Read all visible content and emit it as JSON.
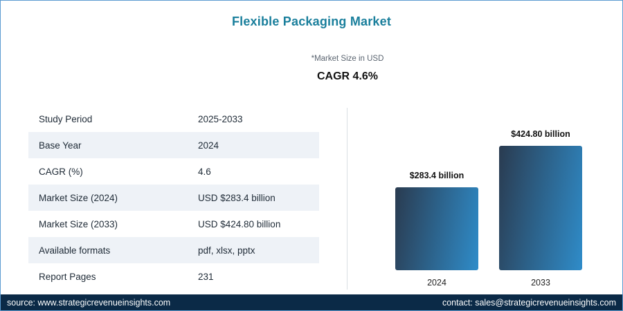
{
  "title": "Flexible Packaging Market",
  "subtitle_note": "*Market Size in USD",
  "cagr_headline": "CAGR 4.6%",
  "table": {
    "rows": [
      {
        "label": "Study Period",
        "value": "2025-2033"
      },
      {
        "label": "Base Year",
        "value": "2024"
      },
      {
        "label": "CAGR (%)",
        "value": "4.6"
      },
      {
        "label": "Market Size (2024)",
        "value": "USD $283.4 billion"
      },
      {
        "label": "Market Size (2033)",
        "value": "USD $424.80 billion"
      },
      {
        "label": "Available formats",
        "value": "pdf, xlsx, pptx"
      },
      {
        "label": "Report Pages",
        "value": "231"
      }
    ]
  },
  "chart_data": {
    "type": "bar",
    "categories": [
      "2024",
      "2033"
    ],
    "values": [
      283.4,
      424.8
    ],
    "value_labels": [
      "$283.4 billion",
      "$424.80 billion"
    ],
    "title": "",
    "xlabel": "",
    "ylabel": "Market Size in USD (billion)",
    "ylim": [
      0,
      424.8
    ],
    "grid": false,
    "legend": false,
    "bar_gradient": [
      "#2a3b50",
      "#2f8cc9"
    ]
  },
  "footer": {
    "source": "source: www.strategicrevenueinsights.com",
    "contact": "contact: sales@strategicrevenueinsights.com"
  },
  "colors": {
    "title": "#1a7f9c",
    "row_alt": "#eef2f7",
    "footer_bg": "#0b2a47",
    "page_border": "#5b9bd0"
  }
}
